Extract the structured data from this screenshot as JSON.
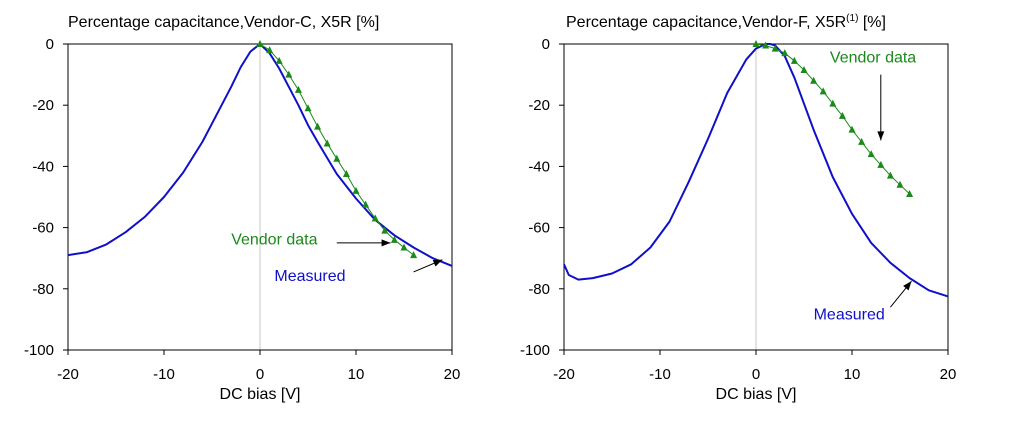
{
  "colors": {
    "measured": "#1010c8",
    "vendor": "#1a8a1a",
    "axis": "#000000",
    "crosshair": "#c8c8c8"
  },
  "chart_data": [
    {
      "type": "line",
      "title": "Percentage capacitance,Vendor-C, X5R [%]",
      "title_superscript": "",
      "title_suffix": "",
      "xlabel": "DC bias [V]",
      "ylabel": "",
      "xlim": [
        -20,
        20
      ],
      "ylim": [
        -100,
        0
      ],
      "x_ticks": [
        "-20",
        "-10",
        "0",
        "10",
        "20"
      ],
      "y_ticks": [
        "0",
        "-20",
        "-40",
        "-60",
        "-80",
        "-100"
      ],
      "grid": false,
      "series": [
        {
          "name": "Measured",
          "color_key": "measured",
          "marker": "none",
          "x": [
            -20,
            -18,
            -16,
            -14,
            -12,
            -10,
            -8,
            -6,
            -4,
            -3,
            -2,
            -1,
            0,
            1,
            2,
            3,
            4,
            5,
            6,
            8,
            10,
            12,
            14,
            16,
            18,
            20
          ],
          "y": [
            -69,
            -68,
            -65.5,
            -61.5,
            -56.5,
            -50,
            -42,
            -32,
            -20,
            -14,
            -7.5,
            -2.5,
            0,
            -3,
            -8,
            -14,
            -20,
            -26.5,
            -32,
            -42.5,
            -50.5,
            -57.5,
            -62.5,
            -66.5,
            -70,
            -72.5
          ]
        },
        {
          "name": "Vendor data",
          "color_key": "vendor",
          "marker": "triangle",
          "x": [
            0,
            1,
            2,
            3,
            4,
            5,
            6,
            7,
            8,
            9,
            10,
            11,
            12,
            13,
            14,
            15,
            16
          ],
          "y": [
            0,
            -2,
            -5.5,
            -10,
            -15,
            -21,
            -27,
            -32.5,
            -37.5,
            -42.5,
            -48,
            -52.5,
            -57,
            -61,
            -64,
            -66.5,
            -69
          ]
        }
      ],
      "annotations": [
        {
          "text": "Vendor data",
          "color_key": "vendor",
          "text_x": -3,
          "text_y": -65.5,
          "arrow_from": [
            8,
            -65
          ],
          "arrow_to": [
            13.6,
            -65
          ]
        },
        {
          "text": "Measured",
          "color_key": "measured",
          "text_x": 1.5,
          "text_y": -77.5,
          "arrow_from": [
            16,
            -74.5
          ],
          "arrow_to": [
            19,
            -70.5
          ]
        }
      ]
    },
    {
      "type": "line",
      "title": "Percentage capacitance,Vendor-F, X5R",
      "title_superscript": "(1)",
      "title_suffix": " [%]",
      "xlabel": "DC bias [V]",
      "ylabel": "",
      "xlim": [
        -20,
        20
      ],
      "ylim": [
        -100,
        0
      ],
      "x_ticks": [
        "-20",
        "-10",
        "0",
        "10",
        "20"
      ],
      "y_ticks": [
        "0",
        "-20",
        "-40",
        "-60",
        "-80",
        "-100"
      ],
      "grid": false,
      "series": [
        {
          "name": "Measured",
          "color_key": "measured",
          "marker": "none",
          "x": [
            -20,
            -19.5,
            -18.5,
            -17,
            -15,
            -13,
            -11,
            -9,
            -7,
            -5,
            -3,
            -1,
            0,
            1,
            1.5,
            2,
            3,
            4,
            6,
            8,
            10,
            12,
            14,
            16,
            18,
            20
          ],
          "y": [
            -72,
            -75.5,
            -77,
            -76.5,
            -75,
            -72,
            -66.5,
            -58,
            -45,
            -31,
            -16,
            -5,
            -1.5,
            0,
            0,
            -0.5,
            -4,
            -11,
            -28,
            -43.5,
            -55.5,
            -65,
            -71.5,
            -76.5,
            -80.5,
            -82.5
          ]
        },
        {
          "name": "Vendor data",
          "color_key": "vendor",
          "marker": "triangle",
          "x": [
            0,
            1,
            2,
            3,
            4,
            5,
            6,
            7,
            8,
            9,
            10,
            11,
            12,
            13,
            14,
            15,
            16
          ],
          "y": [
            0,
            -0.5,
            -1.5,
            -3,
            -5.5,
            -8.5,
            -12,
            -15.5,
            -19.5,
            -23.5,
            -28,
            -32,
            -36,
            -39.5,
            -43,
            -46,
            -49
          ]
        }
      ],
      "annotations": [
        {
          "text": "Vendor data",
          "color_key": "vendor",
          "text_x": 7.7,
          "text_y": -6,
          "arrow_from": [
            13,
            -10
          ],
          "arrow_to": [
            13,
            -31.5
          ]
        },
        {
          "text": "Measured",
          "color_key": "measured",
          "text_x": 6,
          "text_y": -90,
          "arrow_from": [
            14,
            -86
          ],
          "arrow_to": [
            16.2,
            -77.5
          ]
        }
      ]
    }
  ]
}
